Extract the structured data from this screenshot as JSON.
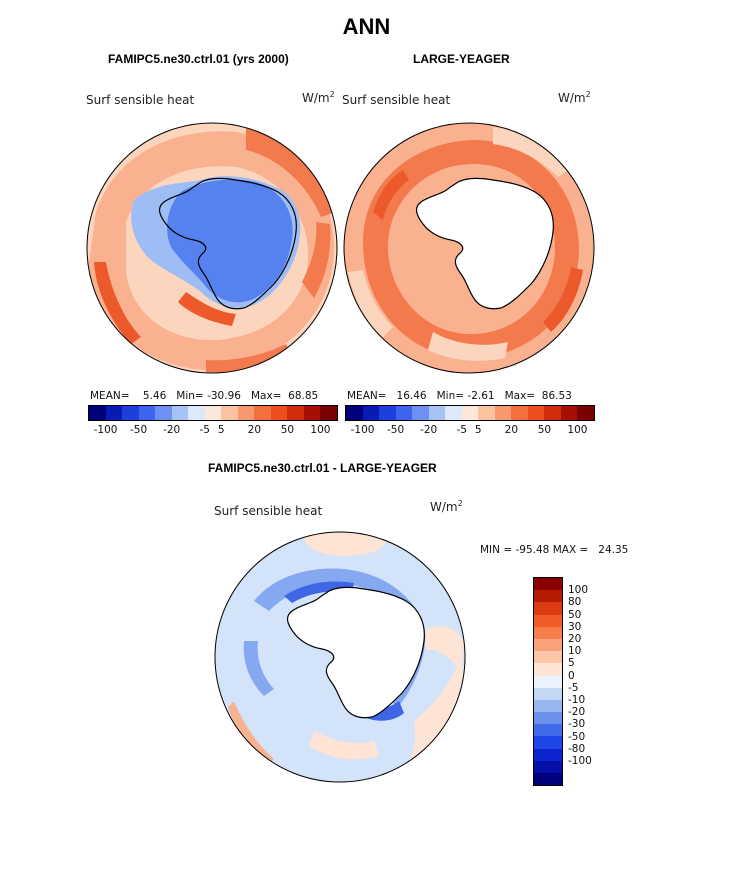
{
  "title": "ANN",
  "panel_left": {
    "title": "FAMIPC5.ne30.ctrl.01 (yrs 2000)",
    "variable": "Surf sensible heat",
    "units_base": "W/m",
    "units_exp": "2",
    "stats": {
      "mean_label": "MEAN=",
      "mean": "5.46",
      "min_label": "Min=",
      "min": "-30.96",
      "max_label": "Max=",
      "max": "68.85"
    }
  },
  "panel_right": {
    "title": "LARGE-YEAGER",
    "variable": "Surf sensible heat",
    "units_base": "W/m",
    "units_exp": "2",
    "stats": {
      "mean_label": "MEAN=",
      "mean": "16.46",
      "min_label": "Min=",
      "min": "-2.61",
      "max_label": "Max=",
      "max": "86.53"
    }
  },
  "panel_diff": {
    "title": "FAMIPC5.ne30.ctrl.01 - LARGE-YEAGER",
    "variable": "Surf sensible heat",
    "units_base": "W/m",
    "units_exp": "2",
    "stats": {
      "min_label": "MIN =",
      "min": "-95.48",
      "max_label": "MAX =",
      "max": "24.35"
    }
  },
  "colorbar_top": {
    "colors": [
      "#00007a",
      "#0a1ab4",
      "#1f3fdc",
      "#3d64ef",
      "#6e90f2",
      "#a6c3f6",
      "#dde9fb",
      "#fde7da",
      "#fbc3a2",
      "#f8986e",
      "#f5703f",
      "#ec4f1c",
      "#cf2d0c",
      "#a80f04",
      "#7a0000"
    ],
    "tick_labels": [
      "-100",
      "-50",
      "-20",
      "-5",
      "5",
      "20",
      "50",
      "100"
    ]
  },
  "colorbar_diff": {
    "colors": [
      "#8a0000",
      "#b51a03",
      "#dc3a10",
      "#f05c28",
      "#f57e4b",
      "#f8a27a",
      "#fbc6a8",
      "#fde4d4",
      "#eaf2fc",
      "#c4d8f6",
      "#98b7f1",
      "#6a90ec",
      "#3f6ae9",
      "#1e45e6",
      "#0c24d0",
      "#0510a8",
      "#00007a"
    ],
    "labels": [
      "100",
      "80",
      "50",
      "30",
      "20",
      "10",
      "5",
      "0",
      "-5",
      "-10",
      "-20",
      "-30",
      "-50",
      "-80",
      "-100"
    ]
  },
  "map_colors": {
    "ocean_light": "#fcd5bf",
    "ocean_mid": "#f9b190",
    "ocean_strong": "#f37a4c",
    "ocean_peak": "#ec5a2c",
    "ice_blue": "#5582ee",
    "ice_light": "#9fbdf5",
    "land": "#ffffff",
    "diff_light_blue": "#d3e3fa",
    "diff_mid_blue": "#86a8f0",
    "diff_strong_blue": "#3e66e6",
    "diff_light_red": "#fde4d4",
    "diff_mid_red": "#f9b28f"
  }
}
